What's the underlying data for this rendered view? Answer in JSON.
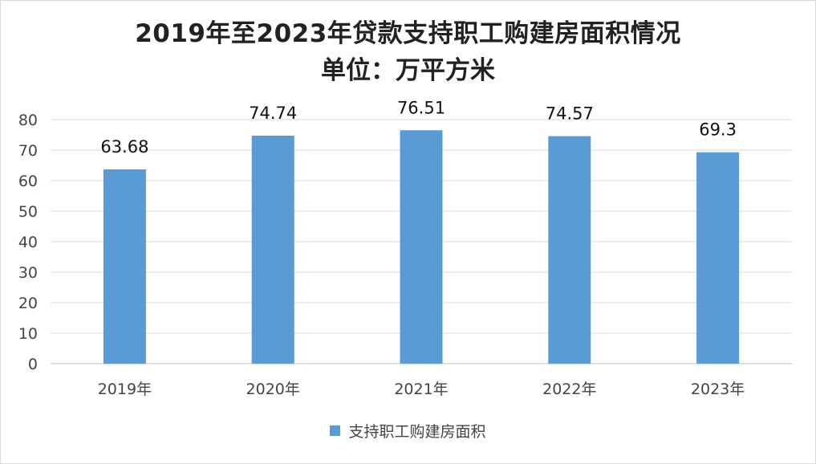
{
  "chart_data": {
    "type": "bar",
    "title": "2019年至2023年贷款支持职工购建房面积情况",
    "subtitle": "单位：万平方米",
    "categories": [
      "2019年",
      "2020年",
      "2021年",
      "2022年",
      "2023年"
    ],
    "series": [
      {
        "name": "支持职工购建房面积",
        "values": [
          63.68,
          74.74,
          76.51,
          74.57,
          69.3
        ],
        "labels": [
          "63.68",
          "74.74",
          "76.51",
          "74.57",
          "69.3"
        ],
        "color": "#5B9BD5"
      }
    ],
    "ylim": [
      0,
      80
    ],
    "yticks": [
      "0",
      "10",
      "20",
      "30",
      "40",
      "50",
      "60",
      "70",
      "80"
    ],
    "ytick_values": [
      0,
      10,
      20,
      30,
      40,
      50,
      60,
      70,
      80
    ],
    "grid": true,
    "legend_position": "bottom"
  }
}
